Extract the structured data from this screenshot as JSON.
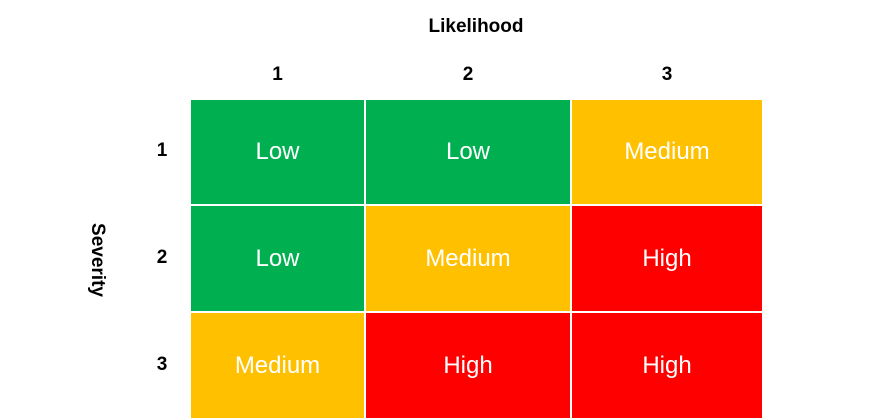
{
  "matrix": {
    "column_title": "Likelihood",
    "row_title": "Severity",
    "columns": [
      "1",
      "2",
      "3"
    ],
    "rows": [
      "1",
      "2",
      "3"
    ],
    "cells": [
      [
        {
          "label": "Low",
          "color": "#00b050"
        },
        {
          "label": "Low",
          "color": "#00b050"
        },
        {
          "label": "Medium",
          "color": "#ffc000"
        }
      ],
      [
        {
          "label": "Low",
          "color": "#00b050"
        },
        {
          "label": "Medium",
          "color": "#ffc000"
        },
        {
          "label": "High",
          "color": "#ff0000"
        }
      ],
      [
        {
          "label": "Medium",
          "color": "#ffc000"
        },
        {
          "label": "High",
          "color": "#ff0000"
        },
        {
          "label": "High",
          "color": "#ff0000"
        }
      ]
    ]
  }
}
